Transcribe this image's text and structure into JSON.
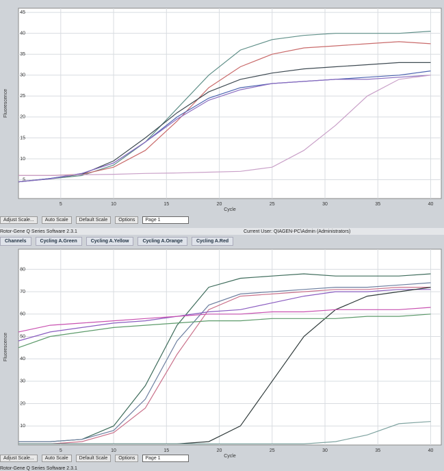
{
  "chart_data": [
    {
      "type": "line",
      "xlabel": "Cycle",
      "ylabel": "Fluorescence",
      "x": [
        1,
        4,
        7,
        10,
        13,
        16,
        19,
        22,
        25,
        28,
        31,
        34,
        37,
        40
      ],
      "xlim": [
        1,
        41
      ],
      "xticks": [
        5,
        10,
        15,
        20,
        25,
        30,
        35,
        40
      ],
      "ylim": [
        0.5,
        46
      ],
      "yticks": [
        5,
        10,
        15,
        20,
        25,
        30,
        35,
        40,
        45
      ],
      "grid": true,
      "series": [
        {
          "color": "#5f8f88",
          "values": [
            4.5,
            5.2,
            6,
            8.5,
            14,
            22,
            30,
            36,
            38.5,
            39.5,
            40,
            40,
            40,
            40.5
          ]
        },
        {
          "color": "#c96a6a",
          "values": [
            6,
            6,
            6.3,
            8,
            12,
            19,
            27,
            32,
            35,
            36.5,
            37,
            37.5,
            38,
            37.5
          ]
        },
        {
          "color": "#3e4a52",
          "values": [
            4.5,
            5.3,
            6.3,
            9.5,
            15,
            21,
            26,
            29,
            30.5,
            31.5,
            32,
            32.5,
            33,
            33
          ]
        },
        {
          "color": "#4a62b0",
          "values": [
            4.5,
            5.3,
            6.5,
            9,
            14,
            20,
            24.5,
            27,
            28,
            28.5,
            29,
            29.5,
            30,
            31
          ]
        },
        {
          "color": "#8a6cc0",
          "values": [
            4.5,
            5.2,
            6.5,
            9,
            14,
            19.5,
            24,
            26.5,
            28,
            28.5,
            29,
            29,
            29.5,
            30
          ]
        },
        {
          "color": "#c9a0c8",
          "values": [
            6,
            6,
            6.2,
            6.3,
            6.5,
            6.6,
            6.8,
            7,
            8,
            12,
            18,
            25,
            29,
            30
          ]
        }
      ]
    },
    {
      "type": "line",
      "xlabel": "Cycle",
      "ylabel": "Fluorescence",
      "x": [
        1,
        4,
        7,
        10,
        13,
        16,
        19,
        22,
        25,
        28,
        31,
        34,
        37,
        40
      ],
      "xlim": [
        1,
        41
      ],
      "xticks": [
        5,
        10,
        15,
        20,
        25,
        30,
        35,
        40
      ],
      "ylim": [
        1.5,
        89
      ],
      "yticks": [
        10,
        20,
        30,
        40,
        50,
        60,
        70,
        80
      ],
      "grid": true,
      "series": [
        {
          "color": "#3d6b5a",
          "values": [
            3,
            3,
            4,
            10,
            28,
            55,
            72,
            76,
            77,
            78,
            77,
            77,
            77,
            78
          ]
        },
        {
          "color": "#6d7fa0",
          "values": [
            3,
            3,
            4,
            8,
            22,
            48,
            64,
            69,
            70,
            71,
            72,
            72,
            73,
            74
          ]
        },
        {
          "color": "#c9708a",
          "values": [
            2,
            2,
            3,
            7,
            18,
            42,
            62,
            68,
            69,
            70,
            71,
            71,
            72,
            72
          ]
        },
        {
          "color": "#8a5cc0",
          "values": [
            48,
            52,
            54,
            56,
            57,
            59,
            61,
            62,
            65,
            68,
            70,
            70,
            71,
            71
          ]
        },
        {
          "color": "#2f3a3a",
          "values": [
            2,
            2,
            2,
            2,
            2,
            2,
            3,
            10,
            30,
            50,
            62,
            68,
            70,
            72
          ]
        },
        {
          "color": "#7fa3a0",
          "values": [
            2,
            2,
            2,
            2,
            2,
            2,
            2,
            2,
            2,
            2,
            3,
            6,
            11,
            12
          ]
        },
        {
          "color": "#5c9a6a",
          "values": [
            45,
            50,
            52,
            54,
            55,
            56,
            57,
            57,
            58,
            58,
            58,
            59,
            59,
            60
          ]
        },
        {
          "color": "#c850b0",
          "values": [
            52,
            55,
            56,
            57,
            58,
            59,
            60,
            60,
            61,
            61,
            62,
            62,
            62,
            63
          ]
        }
      ]
    }
  ],
  "toolbars": [
    {
      "adjust": "Adjust Scale...",
      "auto": "Auto Scale",
      "default": "Default Scale",
      "options": "Options",
      "page": "Page 1"
    },
    {
      "adjust": "Adjust Scale...",
      "auto": "Auto Scale",
      "default": "Default Scale",
      "options": "Options",
      "page": "Page 1"
    }
  ],
  "status": {
    "software": "Rotor-Gene Q Series Software 2.3.1",
    "user": "Current User: QIAGEN-PC\\Admin (Administrators)",
    "software_bottom": "Rotor-Gene Q Series Software 2.3.1"
  },
  "tabs": [
    "Channels",
    "Cycling A.Green",
    "Cycling A.Yellow",
    "Cycling A.Orange",
    "Cycling A.Red"
  ]
}
